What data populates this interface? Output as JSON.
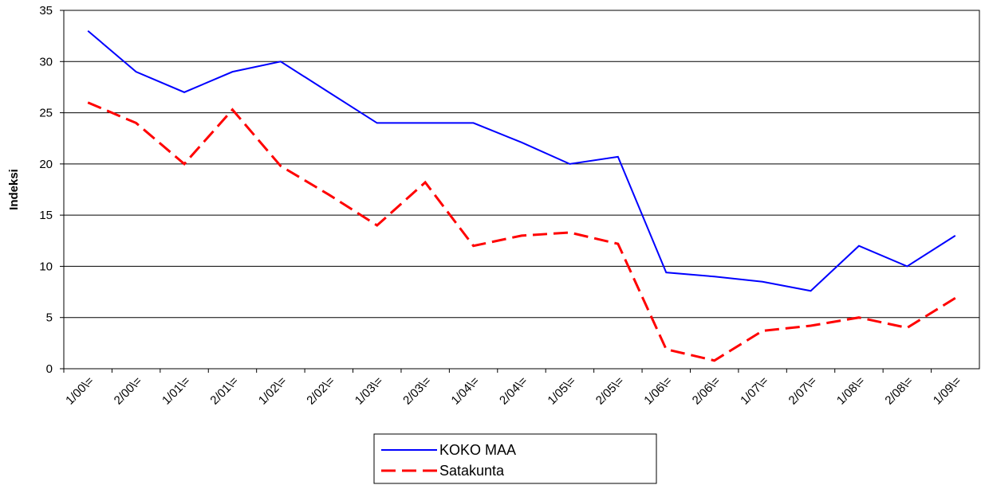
{
  "chart_data": {
    "type": "line",
    "ylabel": "Indeksi",
    "categories": [
      "1/00\\=",
      "2/00\\=",
      "1/01\\=",
      "2/01\\=",
      "1/02\\=",
      "2/02\\=",
      "1/03\\=",
      "2/03\\=",
      "1/04\\=",
      "2/04\\=",
      "1/05\\=",
      "2/05\\=",
      "1/06\\=",
      "2/06\\=",
      "1/07\\=",
      "2/07\\=",
      "1/08\\=",
      "2/08\\=",
      "1/09\\="
    ],
    "series": [
      {
        "name": "KOKO MAA",
        "color": "#0000ff",
        "dashed": false,
        "values": [
          33,
          29,
          27,
          29,
          30,
          27,
          24,
          24,
          24,
          22.1,
          20,
          20.7,
          9.4,
          9,
          8.5,
          7.6,
          12,
          10,
          13
        ]
      },
      {
        "name": "Satakunta",
        "color": "#ff0000",
        "dashed": true,
        "values": [
          26,
          24,
          20,
          25.3,
          19.8,
          17,
          14,
          18.2,
          12,
          13,
          13.3,
          12.2,
          1.9,
          0.8,
          3.7,
          4.2,
          5,
          4,
          6.9
        ]
      }
    ],
    "ylim": [
      0,
      35
    ],
    "yticks": [
      0,
      5,
      10,
      15,
      20,
      25,
      30,
      35
    ],
    "grid": true
  }
}
